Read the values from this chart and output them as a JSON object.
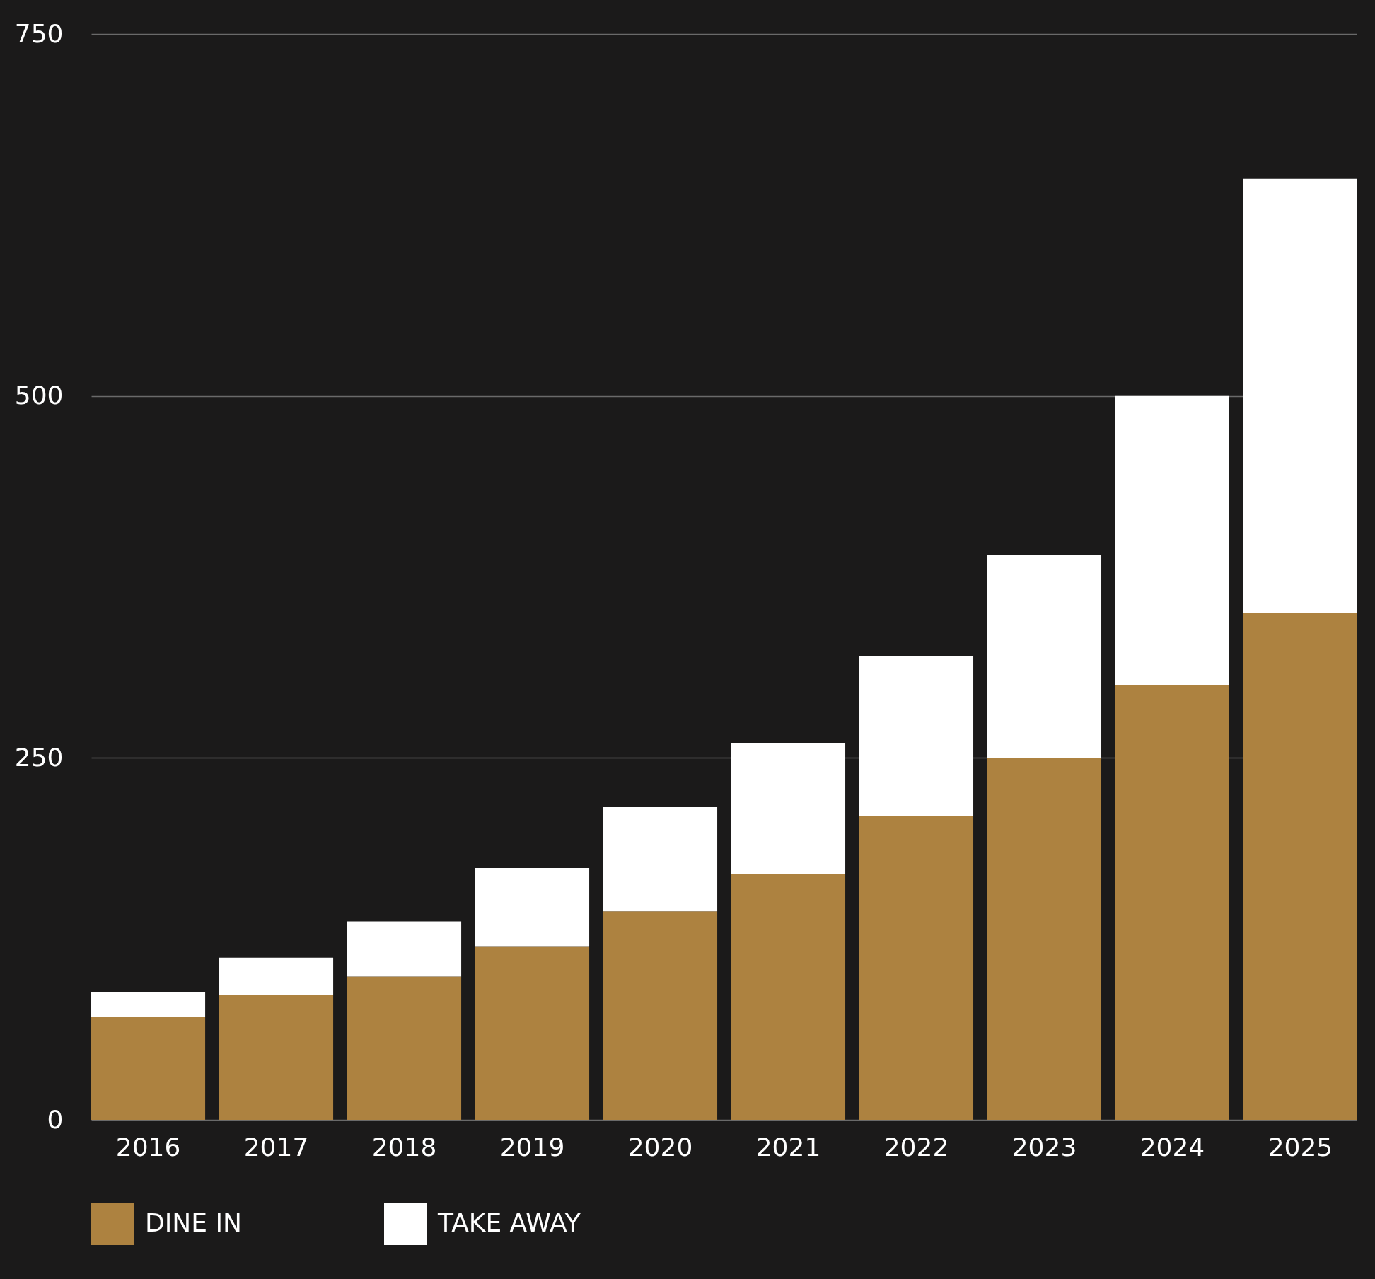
{
  "chart_data": {
    "type": "bar",
    "stacked": true,
    "categories": [
      "2016",
      "2017",
      "2018",
      "2019",
      "2020",
      "2021",
      "2022",
      "2023",
      "2024",
      "2025"
    ],
    "series": [
      {
        "name": "DINE IN",
        "color": "#ad8240",
        "values": [
          71,
          86,
          99,
          120,
          144,
          170,
          210,
          250,
          300,
          350
        ]
      },
      {
        "name": "TAKE AWAY",
        "color": "#ffffff",
        "values": [
          17,
          26,
          38,
          54,
          72,
          90,
          110,
          140,
          200,
          300
        ]
      }
    ],
    "ylim": [
      0,
      750
    ],
    "yticks": [
      0,
      250,
      500,
      750
    ],
    "grid": "y",
    "legend": "bottom"
  }
}
